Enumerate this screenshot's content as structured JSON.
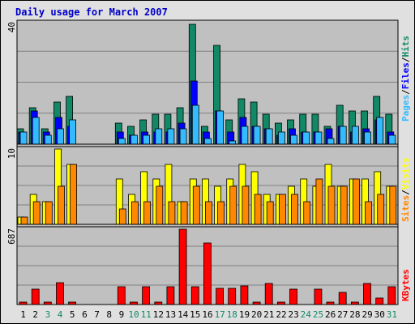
{
  "title": "Daily usage for March 2007",
  "colors": {
    "background": "#C0C0C0",
    "outer_bg": "#E0E0E0",
    "title": "#0000C8",
    "hits": "#118866",
    "files": "#0000FF",
    "pages": "#33BBFF",
    "visits": "#FFFF00",
    "sites": "#FF8800",
    "kbytes": "#FF0000",
    "weekday_label": "#000000",
    "weekend_label": "#118866"
  },
  "chart_data": [
    {
      "type": "bar",
      "name": "hits-files-pages",
      "max_label": "40",
      "ylim": [
        0,
        40
      ],
      "grid": true,
      "legend_label_parts": [
        "Pages",
        "/",
        "Files",
        "/",
        "Hits"
      ],
      "categories": [
        "1",
        "2",
        "3",
        "4",
        "5",
        "6",
        "7",
        "8",
        "9",
        "10",
        "11",
        "12",
        "13",
        "14",
        "15",
        "16",
        "17",
        "18",
        "19",
        "20",
        "21",
        "22",
        "23",
        "24",
        "25",
        "26",
        "27",
        "28",
        "29",
        "30",
        "31"
      ],
      "series": [
        {
          "name": "Hits",
          "values": [
            5,
            12,
            5,
            14,
            16,
            0,
            0,
            0,
            7,
            6,
            8,
            10,
            10,
            12,
            40,
            6,
            33,
            8,
            15,
            14,
            10,
            7,
            8,
            10,
            10,
            6,
            13,
            11,
            11,
            16,
            10
          ]
        },
        {
          "name": "Files",
          "values": [
            4,
            11,
            4,
            9,
            6,
            0,
            0,
            0,
            4,
            3,
            4,
            4,
            4,
            7,
            21,
            4,
            11,
            4,
            9,
            6,
            5,
            3,
            5,
            4,
            4,
            5,
            6,
            4,
            5,
            8,
            4
          ]
        },
        {
          "name": "Pages",
          "values": [
            4,
            9,
            3,
            5,
            8,
            0,
            0,
            0,
            2,
            3,
            3,
            5,
            5,
            5,
            13,
            2,
            11,
            1,
            6,
            6,
            5,
            4,
            3,
            4,
            4,
            2,
            6,
            6,
            4,
            9,
            3
          ]
        }
      ]
    },
    {
      "type": "bar",
      "name": "visits-sites",
      "max_label": "10",
      "ylim": [
        0,
        10
      ],
      "grid": true,
      "legend_label_parts": [
        "Sites",
        "/",
        "Visits"
      ],
      "categories": [
        "1",
        "2",
        "3",
        "4",
        "5",
        "6",
        "7",
        "8",
        "9",
        "10",
        "11",
        "12",
        "13",
        "14",
        "15",
        "16",
        "17",
        "18",
        "19",
        "20",
        "21",
        "22",
        "23",
        "24",
        "25",
        "26",
        "27",
        "28",
        "29",
        "30",
        "31"
      ],
      "series": [
        {
          "name": "Visits",
          "values": [
            1,
            3,
            3,
            5,
            8,
            0,
            0,
            0,
            2,
            3,
            3,
            5,
            3,
            3,
            5,
            3,
            3,
            5,
            5,
            4,
            3,
            4,
            4,
            3,
            6,
            5,
            5,
            6,
            3,
            4,
            5
          ]
        },
        {
          "name": "Sites",
          "values": [
            1,
            4,
            3,
            10,
            8,
            0,
            0,
            0,
            6,
            4,
            7,
            6,
            8,
            3,
            6,
            6,
            5,
            6,
            8,
            7,
            4,
            4,
            5,
            6,
            5,
            8,
            5,
            6,
            6,
            7,
            5
          ]
        }
      ]
    },
    {
      "type": "bar",
      "name": "kbytes",
      "max_label": "687",
      "ylim": [
        0,
        687
      ],
      "grid": true,
      "legend_label_parts": [
        "KBytes"
      ],
      "categories": [
        "1",
        "2",
        "3",
        "4",
        "5",
        "6",
        "7",
        "8",
        "9",
        "10",
        "11",
        "12",
        "13",
        "14",
        "15",
        "16",
        "17",
        "18",
        "19",
        "20",
        "21",
        "22",
        "23",
        "24",
        "25",
        "26",
        "27",
        "28",
        "29",
        "30",
        "31"
      ],
      "weekend_days": [
        "3",
        "4",
        "10",
        "11",
        "17",
        "18",
        "24",
        "25",
        "31"
      ],
      "series": [
        {
          "name": "KBytes",
          "values": [
            20,
            140,
            20,
            200,
            20,
            0,
            0,
            0,
            160,
            20,
            160,
            20,
            160,
            687,
            160,
            560,
            150,
            150,
            170,
            20,
            190,
            20,
            140,
            0,
            140,
            20,
            110,
            20,
            190,
            60,
            160
          ]
        }
      ]
    }
  ]
}
